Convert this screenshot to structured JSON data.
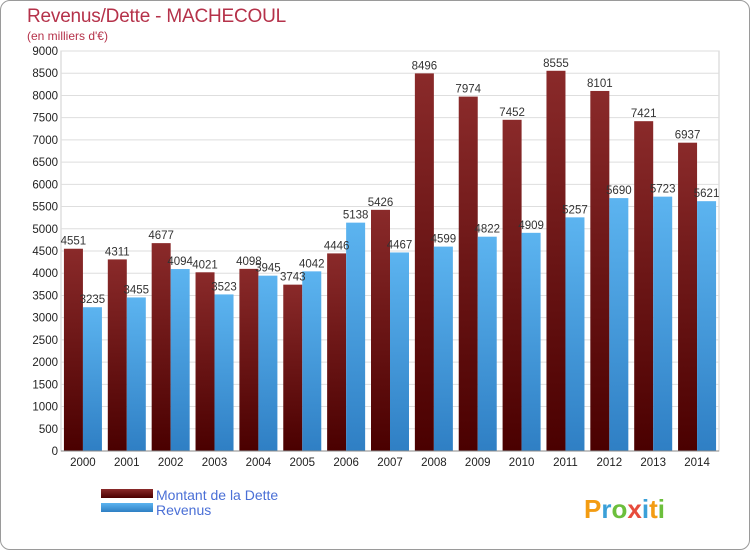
{
  "chart_data": {
    "type": "bar",
    "title": "Revenus/Dette - MACHECOUL",
    "subtitle": "(en milliers d'€)",
    "categories": [
      "2000",
      "2001",
      "2002",
      "2003",
      "2004",
      "2005",
      "2006",
      "2007",
      "2008",
      "2009",
      "2010",
      "2011",
      "2012",
      "2013",
      "2014"
    ],
    "series": [
      {
        "name": "Montant de la Dette",
        "color": "#7a1a1a",
        "values": [
          4551,
          4311,
          4677,
          4021,
          4098,
          3743,
          4446,
          5426,
          8496,
          7974,
          7452,
          8555,
          8101,
          7421,
          6937
        ]
      },
      {
        "name": "Revenus",
        "color": "#4aa3e8",
        "values": [
          3235,
          3455,
          4094,
          3523,
          3945,
          4042,
          5138,
          4467,
          4599,
          4822,
          4909,
          5257,
          5690,
          5723,
          5621
        ]
      }
    ],
    "ylim": [
      0,
      9000
    ],
    "ytick_step": 500,
    "grid": true,
    "legend_position": "bottom-left"
  },
  "logo": {
    "text": "Proxiti"
  }
}
